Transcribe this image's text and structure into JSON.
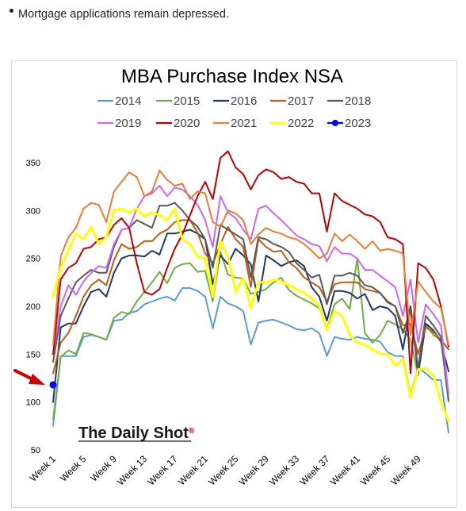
{
  "header": {
    "bullet_text": "Mortgage applications remain depressed."
  },
  "watermark": {
    "text": "The Daily Shot",
    "mark": "®",
    "mark_color": "#cc0000"
  },
  "chart_data": {
    "type": "line",
    "title": "MBA Purchase Index NSA",
    "xlabel": "",
    "ylabel": "",
    "ylim": [
      50,
      370
    ],
    "yticks": [
      50,
      100,
      150,
      200,
      250,
      300,
      350
    ],
    "x_tick_labels": [
      "Week 1",
      "Week 5",
      "Week 9",
      "Week 13",
      "Week 17",
      "Week 21",
      "Week 25",
      "Week 29",
      "Week 33",
      "Week 37",
      "Week 41",
      "Week 45",
      "Week 49"
    ],
    "x_tick_weeks": [
      1,
      5,
      9,
      13,
      17,
      21,
      25,
      29,
      33,
      37,
      41,
      45,
      49
    ],
    "weeks_total": 53,
    "grid": false,
    "legend_position": "top",
    "series": [
      {
        "name": "2014",
        "color": "#5b9bd5",
        "width": 2,
        "values": [
          75,
          148,
          148,
          148,
          168,
          170,
          168,
          165,
          185,
          186,
          193,
          195,
          202,
          205,
          208,
          210,
          206,
          219,
          219,
          216,
          210,
          177,
          210,
          203,
          200,
          195,
          160,
          183,
          185,
          186,
          183,
          180,
          176,
          175,
          177,
          172,
          148,
          168,
          166,
          165,
          168,
          166,
          165,
          163,
          152,
          148,
          148,
          108,
          136,
          130,
          123,
          123,
          68
        ]
      },
      {
        "name": "2015",
        "color": "#70ad47",
        "width": 2,
        "values": [
          82,
          147,
          154,
          150,
          172,
          171,
          168,
          165,
          188,
          194,
          192,
          205,
          215,
          225,
          236,
          224,
          240,
          244,
          245,
          236,
          237,
          205,
          257,
          233,
          230,
          229,
          213,
          215,
          218,
          225,
          230,
          217,
          211,
          207,
          203,
          198,
          176,
          202,
          208,
          197,
          250,
          172,
          162,
          170,
          185,
          181,
          176,
          165,
          128,
          181,
          170,
          165,
          100
        ]
      },
      {
        "name": "2016",
        "color": "#203864",
        "width": 2,
        "values": [
          100,
          178,
          182,
          182,
          200,
          215,
          218,
          210,
          235,
          250,
          253,
          253,
          252,
          258,
          254,
          276,
          276,
          278,
          280,
          276,
          270,
          223,
          253,
          244,
          260,
          253,
          244,
          205,
          253,
          248,
          242,
          246,
          248,
          242,
          220,
          210,
          185,
          216,
          216,
          214,
          208,
          213,
          196,
          200,
          198,
          190,
          155,
          200,
          130,
          182,
          175,
          163,
          132
        ]
      },
      {
        "name": "2017",
        "color": "#c55a11",
        "width": 2,
        "values": [
          130,
          162,
          172,
          190,
          210,
          222,
          228,
          222,
          248,
          265,
          260,
          262,
          268,
          268,
          276,
          280,
          288,
          290,
          290,
          277,
          255,
          245,
          265,
          283,
          270,
          262,
          220,
          270,
          262,
          257,
          258,
          246,
          240,
          230,
          225,
          220,
          205,
          223,
          225,
          225,
          225,
          218,
          216,
          214,
          205,
          200,
          180,
          182,
          150,
          178,
          173,
          165,
          155
        ]
      },
      {
        "name": "2018",
        "color": "#595959",
        "width": 2,
        "values": [
          142,
          190,
          208,
          225,
          232,
          238,
          235,
          235,
          262,
          280,
          282,
          290,
          286,
          282,
          305,
          305,
          308,
          300,
          290,
          283,
          270,
          240,
          285,
          280,
          275,
          270,
          230,
          272,
          270,
          265,
          262,
          257,
          245,
          238,
          230,
          233,
          202,
          232,
          232,
          235,
          232,
          222,
          220,
          214,
          204,
          200,
          172,
          196,
          135,
          190,
          180,
          168,
          102
        ]
      },
      {
        "name": "2019",
        "color": "#cc66ff",
        "width": 2,
        "values": [
          150,
          200,
          222,
          212,
          226,
          235,
          242,
          240,
          265,
          280,
          282,
          302,
          315,
          318,
          326,
          315,
          324,
          322,
          315,
          306,
          290,
          262,
          315,
          298,
          292,
          280,
          270,
          302,
          305,
          297,
          290,
          282,
          274,
          270,
          265,
          263,
          247,
          262,
          255,
          255,
          250,
          238,
          238,
          232,
          226,
          220,
          190,
          228,
          162,
          202,
          192,
          180,
          108
        ]
      },
      {
        "name": "2020",
        "color": "#c00000",
        "width": 2,
        "values": [
          150,
          228,
          240,
          245,
          260,
          262,
          270,
          272,
          285,
          292,
          282,
          245,
          215,
          212,
          218,
          240,
          260,
          275,
          295,
          315,
          330,
          312,
          355,
          362,
          345,
          338,
          322,
          337,
          343,
          340,
          333,
          335,
          330,
          328,
          318,
          318,
          278,
          318,
          310,
          306,
          302,
          296,
          294,
          288,
          272,
          270,
          265,
          130,
          245,
          240,
          228,
          200,
          158
        ]
      },
      {
        "name": "2021",
        "color": "#ed7d31",
        "width": 2,
        "values": [
          160,
          252,
          272,
          282,
          302,
          308,
          306,
          288,
          320,
          330,
          340,
          335,
          315,
          320,
          342,
          332,
          326,
          328,
          312,
          320,
          318,
          288,
          283,
          300,
          297,
          290,
          265,
          275,
          282,
          278,
          276,
          272,
          270,
          265,
          258,
          250,
          255,
          276,
          268,
          275,
          268,
          260,
          268,
          258,
          260,
          258,
          255,
          170,
          226,
          215,
          205,
          198,
          160
        ]
      },
      {
        "name": "2022",
        "color": "#ffff00",
        "width": 3,
        "values": [
          210,
          240,
          258,
          276,
          270,
          283,
          265,
          272,
          300,
          302,
          298,
          302,
          294,
          298,
          295,
          290,
          302,
          270,
          265,
          252,
          250,
          210,
          268,
          252,
          215,
          230,
          198,
          225,
          225,
          228,
          226,
          222,
          218,
          214,
          208,
          200,
          175,
          195,
          190,
          170,
          162,
          160,
          155,
          150,
          150,
          138,
          145,
          105,
          134,
          135,
          128,
          100,
          80
        ]
      }
    ],
    "markers": [
      {
        "name": "2023",
        "color": "#0000ff",
        "x": 1,
        "y": 118
      }
    ],
    "annotation_arrow": {
      "color": "#cc0000",
      "points_to_week": 1,
      "points_to_value": 118
    }
  }
}
